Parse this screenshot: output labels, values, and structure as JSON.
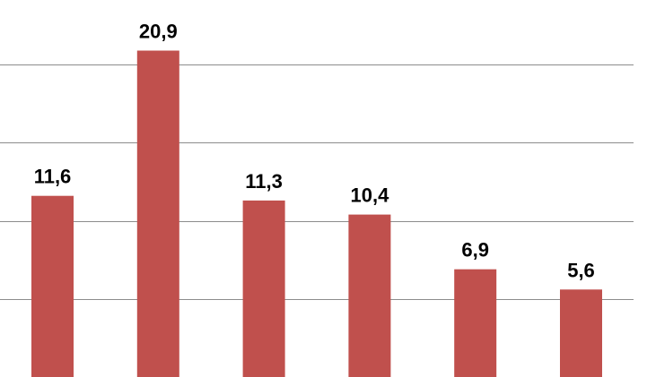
{
  "chart_data": {
    "type": "bar",
    "categories": [
      "",
      "",
      "",
      "",
      "",
      ""
    ],
    "values": [
      11.6,
      20.9,
      11.3,
      10.4,
      6.9,
      5.6
    ],
    "data_labels": [
      "11,6",
      "20,9",
      "11,3",
      "10,4",
      "6,9",
      "5,6"
    ],
    "title": "",
    "xlabel": "",
    "ylabel": "",
    "ylim": [
      0,
      25
    ],
    "grid": true,
    "legend": "none",
    "colors": {
      "bar": "#c0504d",
      "grid": "#8c8c8c"
    }
  }
}
